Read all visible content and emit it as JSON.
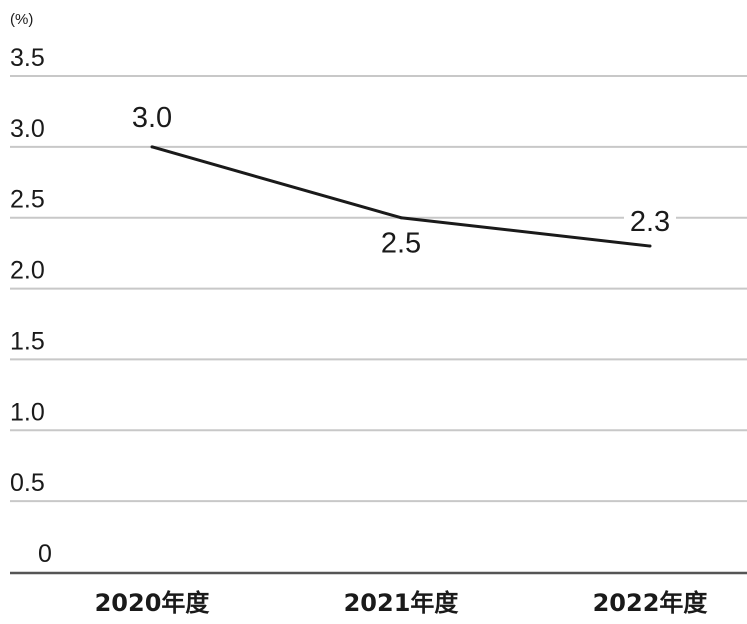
{
  "chart_data": {
    "type": "line",
    "unit_label": "(%)",
    "categories": [
      "2020年度",
      "2021年度",
      "2022年度"
    ],
    "values": [
      3.0,
      2.5,
      2.3
    ],
    "data_labels": [
      "3.0",
      "2.5",
      "2.3"
    ],
    "yticks": [
      "0",
      "0.5",
      "1.0",
      "1.5",
      "2.0",
      "2.5",
      "3.0",
      "3.5"
    ],
    "ylim": [
      0,
      3.5
    ],
    "grid": true,
    "line_color": "#1a1a1a",
    "grid_color": "#c8c8c8"
  }
}
